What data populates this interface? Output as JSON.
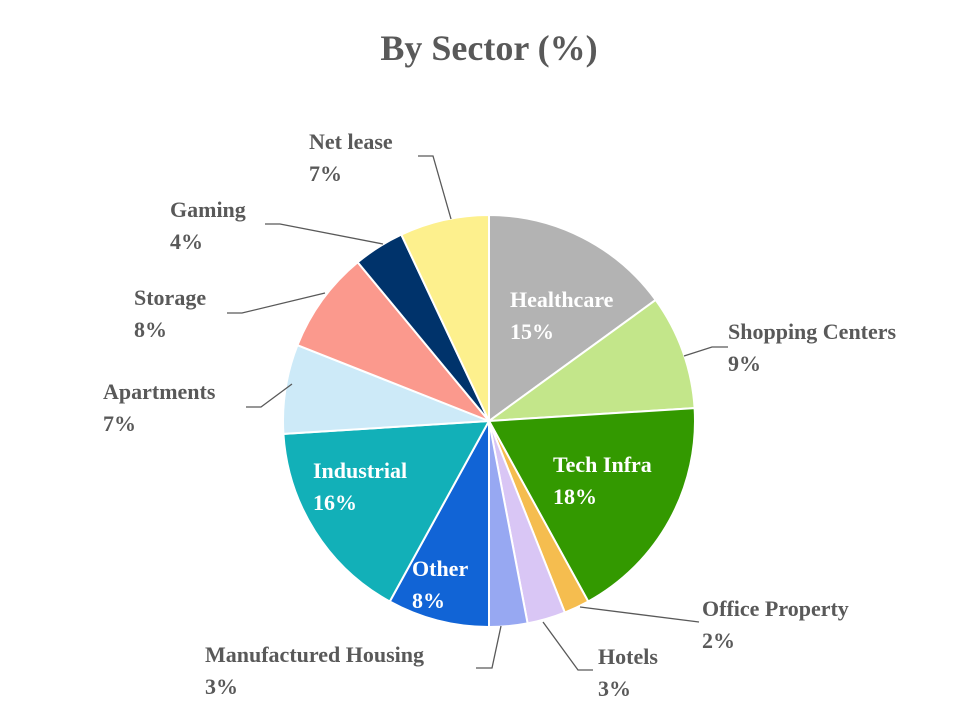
{
  "chart_data": {
    "type": "pie",
    "title": "By Sector (%)",
    "legend": "none",
    "slices": [
      {
        "label": "Healthcare",
        "value": 15,
        "value_label": "15%",
        "color": "#b3b3b3",
        "label_inside": true
      },
      {
        "label": "Shopping Centers",
        "value": 9,
        "value_label": "9%",
        "color": "#c3e68a",
        "label_inside": false
      },
      {
        "label": "Tech Infra",
        "value": 18,
        "value_label": "18%",
        "color": "#339900",
        "label_inside": true
      },
      {
        "label": "Office Property",
        "value": 2,
        "value_label": "2%",
        "color": "#f5bd4f",
        "label_inside": false
      },
      {
        "label": "Hotels",
        "value": 3,
        "value_label": "3%",
        "color": "#d9c6f5",
        "label_inside": false
      },
      {
        "label": "Manufactured Housing",
        "value": 3,
        "value_label": "3%",
        "color": "#97a8f2",
        "label_inside": false
      },
      {
        "label": "Other",
        "value": 8,
        "value_label": "8%",
        "color": "#1164d6",
        "label_inside": true
      },
      {
        "label": "Industrial",
        "value": 16,
        "value_label": "16%",
        "color": "#12b0b8",
        "label_inside": true
      },
      {
        "label": "Apartments",
        "value": 7,
        "value_label": "7%",
        "color": "#cdeaf8",
        "label_inside": false
      },
      {
        "label": "Storage",
        "value": 8,
        "value_label": "8%",
        "color": "#fb998d",
        "label_inside": false
      },
      {
        "label": "Gaming",
        "value": 4,
        "value_label": "4%",
        "color": "#00336b",
        "label_inside": false
      },
      {
        "label": "Net lease",
        "value": 7,
        "value_label": "7%",
        "color": "#fdf08d",
        "label_inside": false
      }
    ]
  }
}
